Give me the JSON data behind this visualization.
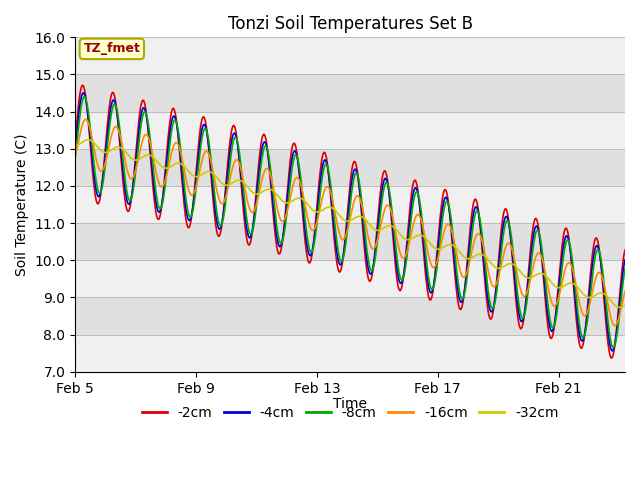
{
  "title": "Tonzi Soil Temperatures Set B",
  "ylabel": "Soil Temperature (C)",
  "xlabel": "Time",
  "annotation": "TZ_fmet",
  "ylim": [
    7.0,
    16.0
  ],
  "yticks": [
    7.0,
    8.0,
    9.0,
    10.0,
    11.0,
    12.0,
    13.0,
    14.0,
    15.0,
    16.0
  ],
  "xtick_labels": [
    "Feb 5",
    "Feb 9",
    "Feb 13",
    "Feb 17",
    "Feb 21"
  ],
  "xtick_positions": [
    5,
    9,
    13,
    17,
    21
  ],
  "legend_labels": [
    "-2cm",
    "-4cm",
    "-8cm",
    "-16cm",
    "-32cm"
  ],
  "line_colors": [
    "#dd0000",
    "#0000dd",
    "#00aa00",
    "#ff8800",
    "#cccc00"
  ],
  "line_width": 1.2,
  "bg_color": "#ffffff",
  "plot_bg_light": "#f0f0f0",
  "plot_bg_dark": "#e0e0e0",
  "n_points": 864,
  "start_day": 5.0,
  "end_day": 23.2,
  "period_hours": 24,
  "trend_start": 13.2,
  "trend_end": 8.8,
  "amplitudes": [
    1.55,
    1.35,
    1.25,
    0.65,
    0.12
  ],
  "phase_shifts": [
    0.0,
    0.25,
    0.55,
    1.05,
    1.8
  ],
  "depth_lags_hours": [
    0,
    1.5,
    3.5,
    6.5,
    12.0
  ],
  "figsize": [
    6.4,
    4.8
  ],
  "dpi": 100
}
